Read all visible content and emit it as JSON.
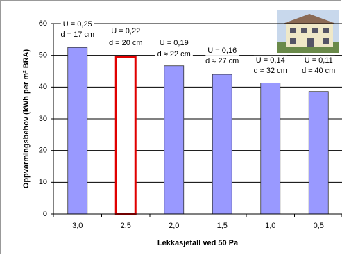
{
  "chart_data": {
    "type": "bar",
    "x_label": "Lekkasjetall ved 50 Pa",
    "y_label": "Oppvarmingsbehov (kWh per m² BRA)",
    "categories": [
      "3,0",
      "2,5",
      "2,0",
      "1,5",
      "1,0",
      "0,5"
    ],
    "values": [
      52.5,
      49.5,
      46.7,
      44,
      41.3,
      38.6
    ],
    "color": "#9999ff",
    "highlight": {
      "index": 1,
      "color": "#e00000",
      "fill": "#ffffff"
    },
    "annotations": [
      [
        "U = 0,25",
        "d = 17 cm"
      ],
      [
        "U = 0,22",
        "d = 20 cm"
      ],
      [
        "U = 0,19",
        "d ≈ 22 cm"
      ],
      [
        "U = 0,16",
        "d ≈ 27 cm"
      ],
      [
        "U = 0,14",
        "d ≈ 32 cm"
      ],
      [
        "U = 0,11",
        "d ≈ 40 cm"
      ]
    ],
    "ylim": [
      0,
      60
    ],
    "yticks": [
      0,
      10,
      20,
      30,
      40,
      50,
      60
    ],
    "grid": true
  }
}
